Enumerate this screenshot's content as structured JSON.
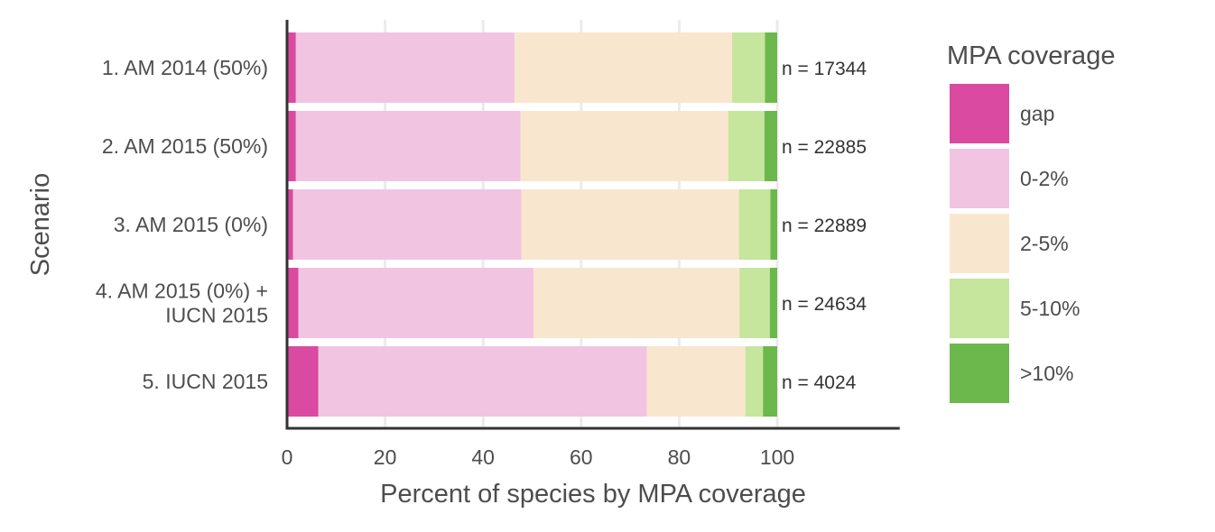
{
  "chart_data": {
    "type": "bar",
    "orientation": "horizontal",
    "stacked": true,
    "xlabel": "Percent of species by MPA coverage",
    "ylabel": "Scenario",
    "xlim": [
      0,
      125
    ],
    "xticks": [
      0,
      20,
      40,
      60,
      80,
      100
    ],
    "grid": true,
    "categories": [
      [
        "1. AM 2014 (50%)"
      ],
      [
        "2. AM 2015 (50%)"
      ],
      [
        "3. AM 2015 (0%)"
      ],
      [
        "4. AM 2015 (0%) +",
        "IUCN 2015"
      ],
      [
        "5. IUCN 2015"
      ]
    ],
    "annotations": [
      "n = 17344",
      "n = 22885",
      "n = 22889",
      "n = 24634",
      "n = 4024"
    ],
    "series": [
      {
        "name": "gap",
        "color": "#d94aa0",
        "values": [
          1.8,
          1.8,
          1.2,
          2.3,
          6.4
        ]
      },
      {
        "name": "0-2%",
        "color": "#f1c4e2",
        "values": [
          44.6,
          45.8,
          46.6,
          48.0,
          67.0
        ]
      },
      {
        "name": "2-5%",
        "color": "#f9e6cf",
        "values": [
          44.4,
          42.4,
          44.4,
          42.0,
          20.1
        ]
      },
      {
        "name": "5-10%",
        "color": "#c5e69c",
        "values": [
          6.7,
          7.4,
          6.4,
          6.2,
          3.6
        ]
      },
      {
        "name": ">10%",
        "color": "#6db84c",
        "values": [
          2.5,
          2.6,
          1.4,
          1.5,
          2.9
        ]
      }
    ],
    "legend": {
      "title": "MPA coverage",
      "placement": "right"
    }
  }
}
